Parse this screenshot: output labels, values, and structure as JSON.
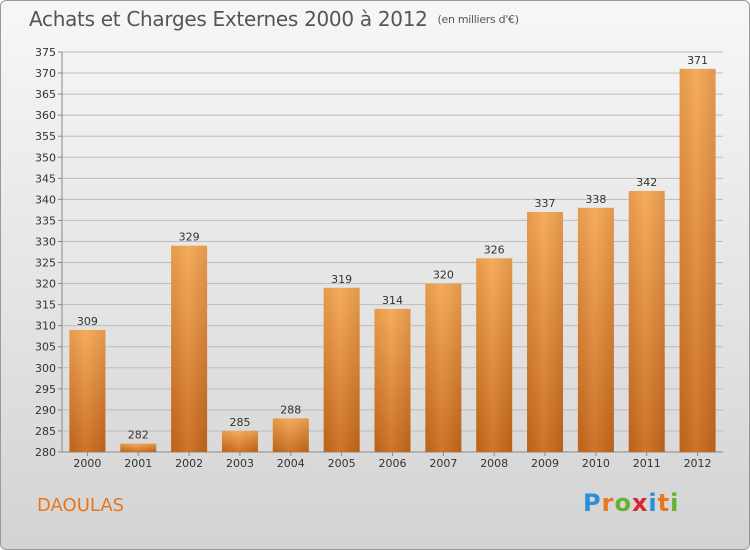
{
  "page": {
    "title": "Achats et Charges Externes 2000 à 2012",
    "unit": "(en milliers d'€)",
    "city": "DAOULAS",
    "logo": {
      "text": "Proxiti",
      "letters": [
        "P",
        "r",
        "o",
        "x",
        "i",
        "t",
        "i"
      ],
      "colors": [
        "#2a8fd6",
        "#e8761c",
        "#66b032",
        "#d9262f",
        "#2a8fd6",
        "#e8761c",
        "#66b032"
      ]
    }
  },
  "chart_data": {
    "type": "bar",
    "categories": [
      "2000",
      "2001",
      "2002",
      "2003",
      "2004",
      "2005",
      "2006",
      "2007",
      "2008",
      "2009",
      "2010",
      "2011",
      "2012"
    ],
    "values": [
      309,
      282,
      329,
      285,
      288,
      319,
      314,
      320,
      326,
      337,
      338,
      342,
      371
    ],
    "title": "Achats et Charges Externes 2000 à 2012",
    "ylim": [
      280,
      375
    ],
    "yticks": [
      280,
      285,
      290,
      295,
      300,
      305,
      310,
      315,
      320,
      325,
      330,
      335,
      340,
      345,
      350,
      355,
      360,
      365,
      370,
      375
    ],
    "grid": true,
    "colors": {
      "bar_light": "#f5a551",
      "bar_dark": "#c8681a",
      "grid": "#bdbdbd"
    }
  }
}
